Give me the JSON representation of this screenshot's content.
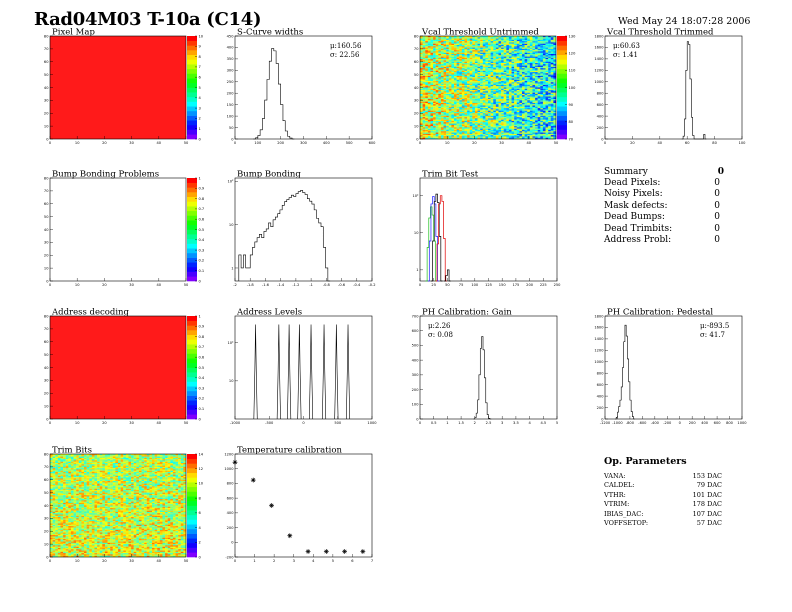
{
  "header": {
    "title": "Rad04M03 T-10a (C14)",
    "date": "Wed May 24 18:07:28 2006"
  },
  "colors": {
    "frame": "#000000",
    "red_fill": "#ff1a1a",
    "hist_black": "#000000",
    "trim_green": "#20c020",
    "trim_blue": "#2020ff",
    "trim_red": "#e00000"
  },
  "chart_data": [
    {
      "id": "pixel_map",
      "type": "heatmap",
      "title": "Pixel Map",
      "xlim": [
        0,
        52
      ],
      "ylim": [
        0,
        80
      ],
      "xticks": [
        "0",
        "10",
        "20",
        "30",
        "40",
        "50"
      ],
      "yticks": [
        "0",
        "10",
        "20",
        "30",
        "40",
        "50",
        "60",
        "70",
        "80"
      ],
      "fill": "uniform",
      "value": 10,
      "palette_labels": [
        "0",
        "1",
        "2",
        "3",
        "4",
        "5",
        "6",
        "7",
        "8",
        "9",
        "10"
      ]
    },
    {
      "id": "scurve_widths",
      "type": "bar",
      "title": "S-Curve widths",
      "xlim": [
        0,
        600
      ],
      "ylim": [
        0,
        450
      ],
      "xticks": [
        "0",
        "100",
        "200",
        "300",
        "400",
        "500",
        "600"
      ],
      "yticks": [
        "0",
        "50",
        "100",
        "150",
        "200",
        "250",
        "300",
        "350",
        "400",
        "450"
      ],
      "stats": [
        "μ:160.56",
        "σ: 22.56"
      ],
      "bins": [
        [
          80,
          0
        ],
        [
          90,
          5
        ],
        [
          100,
          15
        ],
        [
          110,
          40
        ],
        [
          120,
          90
        ],
        [
          130,
          170
        ],
        [
          140,
          260
        ],
        [
          150,
          340
        ],
        [
          160,
          395
        ],
        [
          170,
          385
        ],
        [
          180,
          330
        ],
        [
          190,
          240
        ],
        [
          200,
          150
        ],
        [
          210,
          80
        ],
        [
          220,
          35
        ],
        [
          230,
          12
        ],
        [
          240,
          4
        ],
        [
          250,
          0
        ]
      ]
    },
    {
      "id": "vcal_untrimmed",
      "type": "heatmap",
      "title": "Vcal Threshold Untrimmed",
      "xlim": [
        0,
        52
      ],
      "ylim": [
        0,
        80
      ],
      "xticks": [
        "0",
        "10",
        "20",
        "30",
        "40",
        "50"
      ],
      "yticks": [
        "0",
        "10",
        "20",
        "30",
        "40",
        "50",
        "60",
        "70",
        "80"
      ],
      "fill": "noise",
      "base": 110,
      "spread": 25,
      "palette_labels": [
        "70",
        "80",
        "90",
        "100",
        "110",
        "120",
        "130"
      ]
    },
    {
      "id": "vcal_trimmed",
      "type": "bar",
      "title": "Vcal Threshold Trimmed",
      "xlim": [
        0,
        100
      ],
      "ylim": [
        0,
        1800
      ],
      "xticks": [
        "0",
        "20",
        "40",
        "60",
        "80",
        "100"
      ],
      "yticks": [
        "0",
        "200",
        "400",
        "600",
        "800",
        "1000",
        "1200",
        "1400",
        "1600",
        "1800"
      ],
      "stats": [
        "μ:60.63",
        "σ: 1.41"
      ],
      "bins": [
        [
          56,
          0
        ],
        [
          57,
          50
        ],
        [
          58,
          350
        ],
        [
          59,
          1200
        ],
        [
          60,
          1700
        ],
        [
          61,
          1650
        ],
        [
          62,
          1050
        ],
        [
          63,
          380
        ],
        [
          64,
          60
        ],
        [
          65,
          0
        ],
        [
          71,
          0
        ],
        [
          72,
          80
        ],
        [
          73,
          0
        ]
      ]
    },
    {
      "id": "bump_problems",
      "type": "heatmap",
      "title": "Bump Bonding Problems",
      "xlim": [
        0,
        52
      ],
      "ylim": [
        0,
        80
      ],
      "xticks": [
        "0",
        "10",
        "20",
        "30",
        "40",
        "50"
      ],
      "yticks": [
        "0",
        "10",
        "20",
        "30",
        "40",
        "50",
        "60",
        "70",
        "80"
      ],
      "fill": "empty",
      "palette_labels": [
        "0",
        "0.1",
        "0.2",
        "0.3",
        "0.4",
        "0.5",
        "0.6",
        "0.7",
        "0.8",
        "0.9",
        "1"
      ]
    },
    {
      "id": "bump_bonding",
      "type": "bar",
      "title": "Bump Bonding",
      "log": true,
      "xlim": [
        -2.0,
        -0.2
      ],
      "ylim": [
        0.5,
        120
      ],
      "xticks": [
        "-2",
        "-1.8",
        "-1.6",
        "-1.4",
        "-1.2",
        "-1",
        "-0.8",
        "-0.6",
        "-0.4",
        "-0.2"
      ],
      "yticks": [
        "1",
        "10",
        "10²"
      ],
      "bins": [
        [
          -1.95,
          2
        ],
        [
          -1.92,
          1
        ],
        [
          -1.89,
          2
        ],
        [
          -1.86,
          1
        ],
        [
          -1.83,
          1
        ],
        [
          -1.8,
          2
        ],
        [
          -1.77,
          3
        ],
        [
          -1.74,
          4
        ],
        [
          -1.71,
          5
        ],
        [
          -1.68,
          6
        ],
        [
          -1.65,
          5
        ],
        [
          -1.62,
          7
        ],
        [
          -1.59,
          8
        ],
        [
          -1.56,
          11
        ],
        [
          -1.53,
          9
        ],
        [
          -1.5,
          13
        ],
        [
          -1.47,
          15
        ],
        [
          -1.44,
          18
        ],
        [
          -1.41,
          22
        ],
        [
          -1.38,
          28
        ],
        [
          -1.35,
          34
        ],
        [
          -1.32,
          38
        ],
        [
          -1.29,
          42
        ],
        [
          -1.26,
          48
        ],
        [
          -1.23,
          45
        ],
        [
          -1.2,
          52
        ],
        [
          -1.17,
          58
        ],
        [
          -1.14,
          62
        ],
        [
          -1.11,
          55
        ],
        [
          -1.08,
          50
        ],
        [
          -1.05,
          40
        ],
        [
          -1.02,
          35
        ],
        [
          -0.99,
          30
        ],
        [
          -0.96,
          22
        ],
        [
          -0.93,
          14
        ],
        [
          -0.9,
          11
        ],
        [
          -0.87,
          9
        ],
        [
          -0.84,
          3
        ],
        [
          -0.81,
          1
        ],
        [
          -0.78,
          0.5
        ]
      ]
    },
    {
      "id": "trim_bit_test",
      "type": "line",
      "title": "Trim Bit Test",
      "log": true,
      "xlim": [
        0,
        250
      ],
      "ylim": [
        0.5,
        300
      ],
      "xticks": [
        "0",
        "25",
        "50",
        "75",
        "100",
        "125",
        "150",
        "175",
        "200",
        "225",
        "250"
      ],
      "yticks": [
        "1",
        "10",
        "10²"
      ],
      "series": [
        {
          "color": "#20c020",
          "points": [
            [
              10,
              0.5
            ],
            [
              13,
              4
            ],
            [
              16,
              25
            ],
            [
              19,
              50
            ],
            [
              22,
              30
            ],
            [
              25,
              6
            ],
            [
              28,
              0.5
            ]
          ]
        },
        {
          "color": "#2020ff",
          "points": [
            [
              14,
              0.5
            ],
            [
              17,
              6
            ],
            [
              20,
              60
            ],
            [
              23,
              95
            ],
            [
              26,
              60
            ],
            [
              29,
              8
            ],
            [
              32,
              0.5
            ]
          ]
        },
        {
          "color": "#000000",
          "points": [
            [
              20,
              0.5
            ],
            [
              23,
              6
            ],
            [
              26,
              70
            ],
            [
              29,
              110
            ],
            [
              32,
              65
            ],
            [
              35,
              8
            ],
            [
              38,
              0.5
            ]
          ]
        },
        {
          "color": "#e00000",
          "points": [
            [
              28,
              0.5
            ],
            [
              31,
              5
            ],
            [
              34,
              60
            ],
            [
              37,
              100
            ],
            [
              40,
              70
            ],
            [
              43,
              7
            ],
            [
              46,
              0.5
            ]
          ]
        },
        {
          "color": "#000000",
          "points": [
            [
              44,
              0.5
            ],
            [
              47,
              0.7
            ],
            [
              50,
              1
            ],
            [
              53,
              0.5
            ]
          ]
        }
      ]
    },
    {
      "id": "address_decoding",
      "type": "heatmap",
      "title": "Address decoding",
      "xlim": [
        0,
        52
      ],
      "ylim": [
        0,
        80
      ],
      "xticks": [
        "0",
        "10",
        "20",
        "30",
        "40",
        "50"
      ],
      "yticks": [
        "0",
        "10",
        "20",
        "30",
        "40",
        "50",
        "60",
        "70",
        "80"
      ],
      "fill": "uniform",
      "value": 1,
      "palette_labels": [
        "0",
        "0.1",
        "0.2",
        "0.3",
        "0.4",
        "0.5",
        "0.6",
        "0.7",
        "0.8",
        "0.9",
        "1"
      ]
    },
    {
      "id": "address_levels",
      "type": "line",
      "title": "Address Levels",
      "log": true,
      "xlim": [
        -1000,
        1000
      ],
      "ylim": [
        1,
        500
      ],
      "xticks": [
        "-1000",
        "-500",
        "0",
        "500",
        "1000"
      ],
      "yticks": [
        "10",
        "10²"
      ],
      "peaks": [
        -700,
        -360,
        -210,
        -60,
        110,
        300,
        480,
        650
      ],
      "peak_height": 300
    },
    {
      "id": "ph_gain",
      "type": "bar",
      "title": "PH Calibration: Gain",
      "xlim": [
        0,
        5
      ],
      "ylim": [
        0,
        700
      ],
      "xticks": [
        "0",
        "0.5",
        "1",
        "1.5",
        "2",
        "2.5",
        "3",
        "3.5",
        "4",
        "4.5",
        "5"
      ],
      "yticks": [
        "0",
        "100",
        "200",
        "300",
        "400",
        "500",
        "600",
        "700"
      ],
      "stats": [
        "μ:2.26",
        "σ: 0.08"
      ],
      "bins": [
        [
          1.95,
          0
        ],
        [
          2.0,
          10
        ],
        [
          2.05,
          40
        ],
        [
          2.1,
          130
        ],
        [
          2.15,
          300
        ],
        [
          2.2,
          480
        ],
        [
          2.25,
          560
        ],
        [
          2.3,
          470
        ],
        [
          2.35,
          280
        ],
        [
          2.4,
          110
        ],
        [
          2.45,
          30
        ],
        [
          2.5,
          5
        ],
        [
          2.55,
          0
        ]
      ]
    },
    {
      "id": "ph_pedestal",
      "type": "bar",
      "title": "PH Calibration: Pedestal",
      "xlim": [
        -1200,
        1000
      ],
      "ylim": [
        0,
        1800
      ],
      "xticks": [
        "-1200",
        "-1000",
        "-800",
        "-600",
        "-400",
        "-200",
        "0",
        "200",
        "400",
        "600",
        "800",
        "1000"
      ],
      "yticks": [
        "0",
        "200",
        "400",
        "600",
        "800",
        "1000",
        "1200",
        "1400",
        "1600",
        "1800"
      ],
      "stats": [
        "μ:-893.5",
        "σ: 41.7"
      ],
      "bins": [
        [
          -1040,
          0
        ],
        [
          -1020,
          30
        ],
        [
          -1000,
          120
        ],
        [
          -980,
          220
        ],
        [
          -960,
          330
        ],
        [
          -940,
          560
        ],
        [
          -920,
          900
        ],
        [
          -900,
          1350
        ],
        [
          -880,
          1640
        ],
        [
          -860,
          1450
        ],
        [
          -840,
          1050
        ],
        [
          -820,
          650
        ],
        [
          -800,
          330
        ],
        [
          -780,
          130
        ],
        [
          -760,
          40
        ],
        [
          -740,
          0
        ]
      ]
    },
    {
      "id": "trim_bits",
      "type": "heatmap",
      "title": "Trim Bits",
      "xlim": [
        0,
        52
      ],
      "ylim": [
        0,
        80
      ],
      "xticks": [
        "0",
        "10",
        "20",
        "30",
        "40",
        "50"
      ],
      "yticks": [
        "0",
        "10",
        "20",
        "30",
        "40",
        "50",
        "60",
        "70",
        "80"
      ],
      "fill": "noise",
      "base": 8,
      "spread": 3,
      "palette_labels": [
        "0",
        "2",
        "4",
        "6",
        "8",
        "10",
        "12",
        "14"
      ]
    },
    {
      "id": "temperature_calibration",
      "type": "scatter",
      "title": "Temperature calibration",
      "xlim": [
        0,
        7.5
      ],
      "ylim": [
        -200,
        1300
      ],
      "xticks": [
        "0",
        "1",
        "2",
        "3",
        "4",
        "5",
        "6",
        "7"
      ],
      "yticks": [
        "-200",
        "0",
        "200",
        "400",
        "600",
        "800",
        "1000",
        "1200"
      ],
      "points": [
        [
          0,
          1180
        ],
        [
          1,
          920
        ],
        [
          2,
          550
        ],
        [
          3,
          110
        ],
        [
          4,
          -120
        ],
        [
          5,
          -120
        ],
        [
          6,
          -120
        ],
        [
          7,
          -120
        ]
      ]
    }
  ],
  "summary": {
    "title": "Summary",
    "total": "0",
    "rows": [
      {
        "label": "Dead Pixels:",
        "value": "0"
      },
      {
        "label": "Noisy Pixels:",
        "value": "0"
      },
      {
        "label": "Mask defects:",
        "value": "0"
      },
      {
        "label": "Dead Bumps:",
        "value": "0"
      },
      {
        "label": "Dead Trimbits:",
        "value": "0"
      },
      {
        "label": "Address Probl:",
        "value": "0"
      }
    ]
  },
  "parameters": {
    "title": "Op. Parameters",
    "rows": [
      {
        "label": "VANA:",
        "value": "153 DAC"
      },
      {
        "label": "CALDEL:",
        "value": "79 DAC"
      },
      {
        "label": "VTHR:",
        "value": "101 DAC"
      },
      {
        "label": "VTRIM:",
        "value": "178 DAC"
      },
      {
        "label": "IBIAS_DAC:",
        "value": "107 DAC"
      },
      {
        "label": "VOFFSETOP:",
        "value": "57 DAC"
      }
    ]
  }
}
